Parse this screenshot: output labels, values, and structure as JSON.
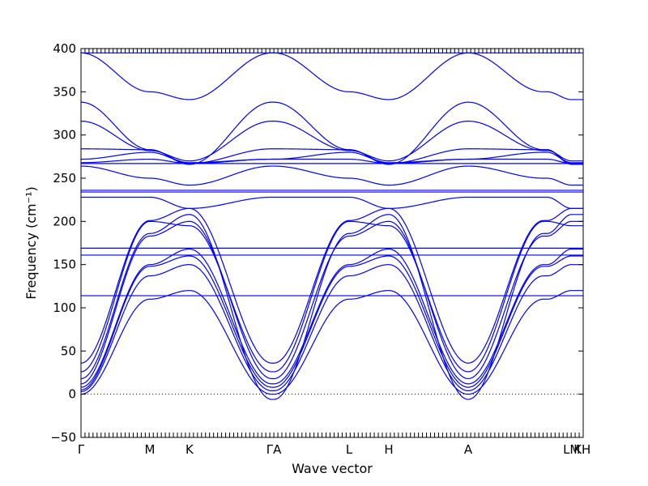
{
  "chart_data": {
    "type": "line",
    "title": "",
    "xlabel": "Wave vector",
    "ylabel": "Frequency (cm⁻¹)",
    "ylim": [
      -50,
      400
    ],
    "yticks": [
      -50,
      0,
      50,
      100,
      150,
      200,
      250,
      300,
      350,
      400
    ],
    "xlim": [
      0,
      10.0
    ],
    "grid": false,
    "line_color": "#0000ff",
    "zero_line": true,
    "high_symmetry_points": [
      {
        "label": "Γ",
        "x": 0.0
      },
      {
        "label": "M",
        "x": 1.37
      },
      {
        "label": "K",
        "x": 2.16
      },
      {
        "label": "ΓA",
        "x": 3.84
      },
      {
        "label": "L",
        "x": 5.34
      },
      {
        "label": "H",
        "x": 6.13
      },
      {
        "label": "A",
        "x": 7.71
      },
      {
        "label": "LM",
        "x": 9.77
      },
      {
        "label": "KH",
        "x": 9.98
      }
    ],
    "minor_tick_spacing": 0.08,
    "segments": [
      {
        "name": "Γ-M",
        "x": [
          0.0,
          1.37
        ]
      },
      {
        "name": "M-K",
        "x": [
          1.37,
          2.16
        ]
      },
      {
        "name": "K-Γ",
        "x": [
          2.16,
          3.79
        ]
      },
      {
        "name": "A-L",
        "x": [
          3.84,
          5.34
        ]
      },
      {
        "name": "L-H",
        "x": [
          5.34,
          6.13
        ]
      },
      {
        "name": "H-A",
        "x": [
          6.13,
          7.71
        ]
      },
      {
        "name": "A-L",
        "x": [
          7.71,
          9.21
        ]
      },
      {
        "name": "L-M",
        "x": [
          9.21,
          9.28
        ]
      },
      {
        "name": "M-K",
        "x": [
          9.28,
          9.77
        ]
      },
      {
        "name": "K-H",
        "x": [
          9.77,
          10.0
        ]
      }
    ],
    "series": [
      {
        "y": [
          0,
          110,
          120,
          0
        ]
      },
      {
        "y": [
          3,
          137,
          150,
          4
        ]
      },
      {
        "y": [
          5,
          148,
          160,
          8
        ]
      },
      {
        "y": [
          8,
          150,
          168,
          12
        ]
      },
      {
        "y": [
          12,
          183,
          200,
          18
        ]
      },
      {
        "y": [
          18,
          186,
          208,
          -6
        ]
      },
      {
        "y": [
          26,
          200,
          195,
          26
        ]
      },
      {
        "y": [
          36,
          201,
          215,
          36
        ]
      },
      {
        "y": [
          228,
          228,
          215,
          228
        ]
      },
      {
        "y": [
          264,
          250,
          242,
          264
        ]
      },
      {
        "y": [
          268,
          272,
          267,
          272
        ]
      },
      {
        "y": [
          272,
          280,
          268,
          272
        ]
      },
      {
        "y": [
          284,
          283,
          267,
          284
        ]
      },
      {
        "y": [
          316,
          282,
          270,
          316
        ]
      },
      {
        "y": [
          338,
          283,
          266,
          338
        ]
      },
      {
        "y": [
          395,
          350,
          341,
          395
        ]
      },
      {
        "y": [
          114,
          114,
          114,
          114
        ]
      },
      {
        "y": [
          161,
          161,
          161,
          161
        ]
      },
      {
        "y": [
          169,
          169,
          169,
          169
        ]
      },
      {
        "y": [
          234,
          234,
          234,
          234
        ]
      },
      {
        "y": [
          236,
          236,
          236,
          236
        ]
      },
      {
        "y": [
          267,
          267,
          267,
          267
        ]
      },
      {
        "y": [
          395,
          395,
          395,
          395
        ]
      }
    ]
  }
}
